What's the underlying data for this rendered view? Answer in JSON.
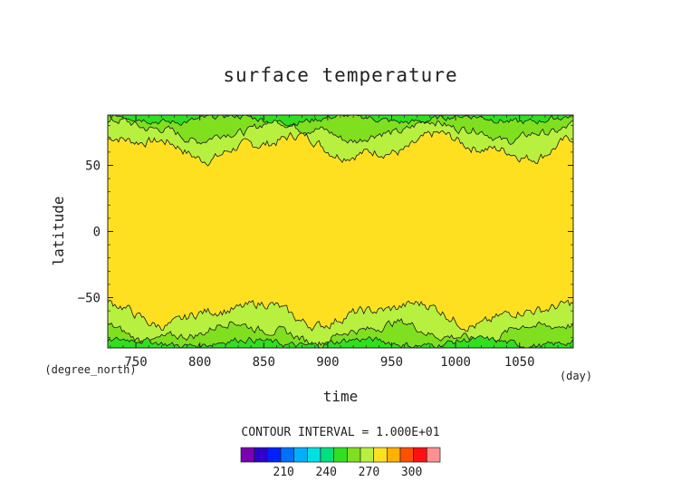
{
  "chart_data": {
    "type": "heatmap",
    "title": "surface temperature",
    "xlabel": "time",
    "ylabel": "latitude",
    "x_unit": "(day)",
    "y_unit": "(degree_north)",
    "xlim": [
      728,
      1092
    ],
    "ylim": [
      -88,
      88
    ],
    "x_ticks": [
      750,
      800,
      850,
      900,
      950,
      1000,
      1050
    ],
    "y_ticks": [
      50,
      0,
      -50
    ],
    "contour_interval_text": "CONTOUR INTERVAL = 1.000E+01",
    "colorbar": {
      "levels_from": 190,
      "levels_to": 310,
      "interval": 10,
      "tick_labels": [
        210,
        240,
        270,
        300
      ],
      "colors": [
        "#7a00b0",
        "#3000cc",
        "#0020ff",
        "#0070ff",
        "#00b0ff",
        "#00e0e0",
        "#00e080",
        "#30e020",
        "#80e020",
        "#b8f040",
        "#ffe020",
        "#ffb000",
        "#ff5000",
        "#ff1010",
        "#ff9090"
      ]
    },
    "fields": {
      "tropics_band": {
        "range": "270-280",
        "color": "#ffe020",
        "lat_from": -60,
        "lat_to": 60
      },
      "midlat_band": {
        "range": "260-270",
        "color": "#b8f040"
      },
      "polar_band": {
        "range": "250-260",
        "color": "#80e020"
      },
      "polar_core": {
        "range": "240-250",
        "color": "#30e020"
      }
    }
  }
}
